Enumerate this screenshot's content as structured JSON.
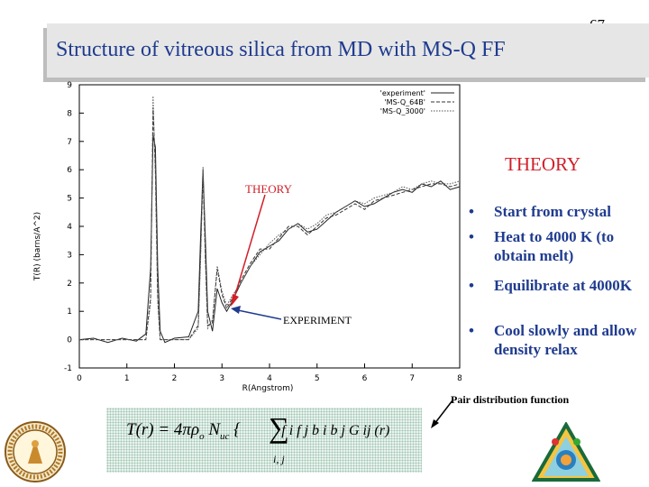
{
  "page_number": "67",
  "title": "Structure of vitreous silica from MD with MS-Q FF",
  "chart_data": {
    "type": "line",
    "xlabel": "R(Angstrom)",
    "ylabel": "T(R) (barns/A^2)",
    "xlim": [
      0,
      8
    ],
    "ylim": [
      -1,
      9
    ],
    "xticks": [
      "0",
      "1",
      "2",
      "3",
      "4",
      "5",
      "6",
      "7",
      "8"
    ],
    "yticks": [
      "-1",
      "0",
      "1",
      "2",
      "3",
      "4",
      "5",
      "6",
      "7",
      "8",
      "9"
    ],
    "legend_position": "top-right",
    "series": [
      {
        "name": "'experiment'",
        "x": [
          0,
          0.3,
          0.6,
          0.9,
          1.2,
          1.4,
          1.5,
          1.55,
          1.6,
          1.65,
          1.7,
          1.8,
          2.0,
          2.3,
          2.5,
          2.55,
          2.6,
          2.65,
          2.7,
          2.8,
          2.9,
          3.0,
          3.1,
          3.2,
          3.4,
          3.6,
          3.8,
          4.0,
          4.2,
          4.4,
          4.6,
          4.8,
          5.0,
          5.2,
          5.4,
          5.6,
          5.8,
          6.0,
          6.2,
          6.4,
          6.6,
          6.8,
          7.0,
          7.2,
          7.4,
          7.6,
          7.8,
          8.0
        ],
        "y": [
          0,
          0.05,
          -0.1,
          0.05,
          -0.05,
          0.2,
          2.5,
          7.2,
          6.8,
          2.5,
          0.3,
          -0.1,
          0.05,
          0.1,
          1.0,
          3.6,
          6.0,
          3.6,
          1.0,
          0.3,
          1.8,
          1.3,
          1.0,
          1.3,
          2.0,
          2.6,
          3.1,
          3.3,
          3.5,
          3.9,
          4.1,
          3.8,
          3.9,
          4.2,
          4.5,
          4.7,
          4.9,
          4.7,
          4.8,
          5.0,
          5.2,
          5.3,
          5.2,
          5.5,
          5.4,
          5.6,
          5.3,
          5.4
        ]
      },
      {
        "name": "'MS-Q_64B'",
        "x": [
          0,
          0.3,
          0.6,
          0.9,
          1.2,
          1.4,
          1.5,
          1.55,
          1.6,
          1.65,
          1.7,
          1.8,
          2.0,
          2.3,
          2.5,
          2.55,
          2.6,
          2.65,
          2.7,
          2.8,
          2.9,
          3.0,
          3.1,
          3.2,
          3.4,
          3.6,
          3.8,
          4.0,
          4.2,
          4.4,
          4.6,
          4.8,
          5.0,
          5.2,
          5.4,
          5.6,
          5.8,
          6.0,
          6.2,
          6.4,
          6.6,
          6.8,
          7.0,
          7.2,
          7.4,
          7.6,
          7.8,
          8.0
        ],
        "y": [
          0,
          0,
          0,
          0,
          0,
          0,
          1.5,
          8.2,
          6.0,
          1.5,
          0,
          0,
          0,
          0,
          0.5,
          3.0,
          5.8,
          3.0,
          0.5,
          0.6,
          2.5,
          1.6,
          1.1,
          1.4,
          2.1,
          2.7,
          3.2,
          3.2,
          3.6,
          4.0,
          4.0,
          3.7,
          4.0,
          4.3,
          4.4,
          4.6,
          4.8,
          4.6,
          4.9,
          5.0,
          5.1,
          5.2,
          5.3,
          5.4,
          5.5,
          5.5,
          5.4,
          5.5
        ]
      },
      {
        "name": "'MS-Q_3000'",
        "x": [
          0,
          0.3,
          0.6,
          0.9,
          1.2,
          1.4,
          1.5,
          1.55,
          1.6,
          1.65,
          1.7,
          1.8,
          2.0,
          2.3,
          2.5,
          2.55,
          2.6,
          2.65,
          2.7,
          2.8,
          2.9,
          3.0,
          3.1,
          3.2,
          3.4,
          3.6,
          3.8,
          4.0,
          4.2,
          4.4,
          4.6,
          4.8,
          5.0,
          5.2,
          5.4,
          5.6,
          5.8,
          6.0,
          6.2,
          6.4,
          6.6,
          6.8,
          7.0,
          7.2,
          7.4,
          7.6,
          7.8,
          8.0
        ],
        "y": [
          0,
          0,
          0,
          0,
          0,
          0,
          1.3,
          8.6,
          5.8,
          1.3,
          0,
          0,
          0,
          0,
          0.4,
          2.8,
          6.1,
          2.8,
          0.4,
          0.7,
          2.6,
          1.7,
          1.2,
          1.5,
          2.0,
          2.6,
          3.0,
          3.4,
          3.7,
          3.9,
          4.1,
          3.9,
          4.1,
          4.4,
          4.5,
          4.7,
          4.9,
          4.8,
          5.0,
          5.1,
          5.2,
          5.4,
          5.3,
          5.5,
          5.6,
          5.5,
          5.5,
          5.6
        ]
      }
    ],
    "annotations": [
      "THEORY",
      "EXPERIMENT"
    ]
  },
  "theory_label_right": "THEORY",
  "bullets": [
    "Start from crystal",
    "Heat to 4000 K (to obtain melt)",
    "Equilibrate at 4000K",
    "Cool slowly and allow density relax"
  ],
  "pdf_label": "Pair distribution function",
  "formula": {
    "left": "T(r) = 4πρ",
    "o": "o",
    "n": "N",
    "uc": "uc",
    "sigma": "∑",
    "under": "i, j",
    "right": "f i f j b i b j G ij (r)"
  },
  "colors": {
    "title": "#1f3b8f",
    "theory": "#d0202a",
    "arrow_experiment": "#1f3b8f"
  },
  "logos": [
    "caltech-seal-icon",
    "msc-triangle-logo-icon"
  ]
}
